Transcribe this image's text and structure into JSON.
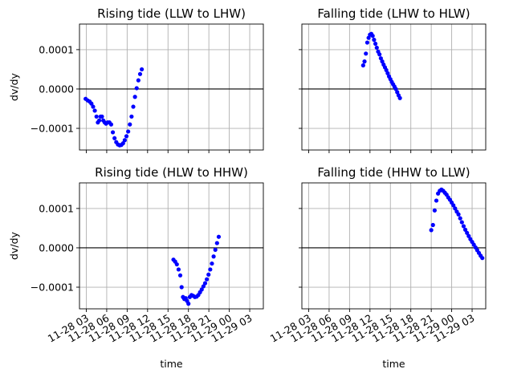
{
  "chart_data": {
    "type": "scatter",
    "shared": {
      "ylabel": "dv/dy",
      "xlabel": "time",
      "ylim": [
        -0.000155,
        0.000165
      ],
      "yticks": [
        {
          "value": 0.0001,
          "label": "0.0001"
        },
        {
          "value": 0.0,
          "label": "0.0000"
        },
        {
          "value": -0.0001,
          "label": "−0.0001"
        }
      ],
      "xlim": [
        -2.2,
        54
      ],
      "xticks": [
        {
          "value": 3,
          "label": "11-28 03"
        },
        {
          "value": 6,
          "label": "11-28 06"
        },
        {
          "value": 9,
          "label": "11-28 09"
        },
        {
          "value": 12,
          "label": "11-28 12"
        },
        {
          "value": 15,
          "label": "11-28 15"
        },
        {
          "value": 18,
          "label": "11-28 18"
        },
        {
          "value": 21,
          "label": "11-28 21"
        },
        {
          "value": 24,
          "label": "11-29 00"
        },
        {
          "value": 27,
          "label": "11-29 03"
        }
      ],
      "grid": true,
      "zero_line": true,
      "marker_color": "#0000ff"
    },
    "panels": [
      {
        "title": "Rising tide (LLW to LHW)",
        "xlim": [
          2.0,
          29.0
        ],
        "points": [
          {
            "x": 2.9,
            "y": -2.5e-05
          },
          {
            "x": 3.2,
            "y": -2.9e-05
          },
          {
            "x": 3.5,
            "y": -3.2e-05
          },
          {
            "x": 3.75,
            "y": -3.7e-05
          },
          {
            "x": 4.0,
            "y": -4.5e-05
          },
          {
            "x": 4.25,
            "y": -5.5e-05
          },
          {
            "x": 4.5,
            "y": -7e-05
          },
          {
            "x": 4.7,
            "y": -8.5e-05
          },
          {
            "x": 4.9,
            "y": -8e-05
          },
          {
            "x": 5.1,
            "y": -7e-05
          },
          {
            "x": 5.3,
            "y": -7e-05
          },
          {
            "x": 5.5,
            "y": -8e-05
          },
          {
            "x": 5.7,
            "y": -8.5e-05
          },
          {
            "x": 5.9,
            "y": -8.8e-05
          },
          {
            "x": 6.15,
            "y": -8.5e-05
          },
          {
            "x": 6.4,
            "y": -8.5e-05
          },
          {
            "x": 6.65,
            "y": -9e-05
          },
          {
            "x": 6.9,
            "y": -0.00011
          },
          {
            "x": 7.15,
            "y": -0.000125
          },
          {
            "x": 7.4,
            "y": -0.000135
          },
          {
            "x": 7.65,
            "y": -0.000141
          },
          {
            "x": 7.9,
            "y": -0.000143
          },
          {
            "x": 8.15,
            "y": -0.000142
          },
          {
            "x": 8.4,
            "y": -0.000138
          },
          {
            "x": 8.65,
            "y": -0.00013
          },
          {
            "x": 8.9,
            "y": -0.00012
          },
          {
            "x": 9.15,
            "y": -0.000108
          },
          {
            "x": 9.4,
            "y": -9e-05
          },
          {
            "x": 9.65,
            "y": -7e-05
          },
          {
            "x": 9.9,
            "y": -4.5e-05
          },
          {
            "x": 10.15,
            "y": -2e-05
          },
          {
            "x": 10.4,
            "y": 2e-06
          },
          {
            "x": 10.65,
            "y": 2.2e-05
          },
          {
            "x": 10.9,
            "y": 3.8e-05
          },
          {
            "x": 11.15,
            "y": 5e-05
          }
        ]
      },
      {
        "title": "Falling tide (LHW to HLW)",
        "xlim": [
          2.0,
          29.0
        ],
        "points": [
          {
            "x": 11.0,
            "y": 6e-05
          },
          {
            "x": 11.2,
            "y": 7e-05
          },
          {
            "x": 11.4,
            "y": 9e-05
          },
          {
            "x": 11.6,
            "y": 0.000118
          },
          {
            "x": 11.8,
            "y": 0.00013
          },
          {
            "x": 12.0,
            "y": 0.000138
          },
          {
            "x": 12.2,
            "y": 0.00014
          },
          {
            "x": 12.4,
            "y": 0.000135
          },
          {
            "x": 12.6,
            "y": 0.000125
          },
          {
            "x": 12.8,
            "y": 0.000115
          },
          {
            "x": 13.0,
            "y": 0.000105
          },
          {
            "x": 13.2,
            "y": 9.5e-05
          },
          {
            "x": 13.4,
            "y": 8.8e-05
          },
          {
            "x": 13.6,
            "y": 7.8e-05
          },
          {
            "x": 13.8,
            "y": 7e-05
          },
          {
            "x": 14.0,
            "y": 6.2e-05
          },
          {
            "x": 14.2,
            "y": 5.5e-05
          },
          {
            "x": 14.4,
            "y": 4.8e-05
          },
          {
            "x": 14.6,
            "y": 4e-05
          },
          {
            "x": 14.8,
            "y": 3.2e-05
          },
          {
            "x": 15.0,
            "y": 2.5e-05
          },
          {
            "x": 15.2,
            "y": 1.8e-05
          },
          {
            "x": 15.4,
            "y": 1.2e-05
          },
          {
            "x": 15.6,
            "y": 6e-06
          },
          {
            "x": 15.8,
            "y": 0.0
          },
          {
            "x": 16.0,
            "y": -8e-06
          },
          {
            "x": 16.2,
            "y": -1.6e-05
          },
          {
            "x": 16.4,
            "y": -2.3e-05
          }
        ]
      },
      {
        "title": "Rising tide (HLW to HHW)",
        "xlim": [
          2.0,
          29.0
        ],
        "points": [
          {
            "x": 15.8,
            "y": -3e-05
          },
          {
            "x": 16.05,
            "y": -3.5e-05
          },
          {
            "x": 16.3,
            "y": -4.2e-05
          },
          {
            "x": 16.55,
            "y": -5.5e-05
          },
          {
            "x": 16.8,
            "y": -7e-05
          },
          {
            "x": 17.0,
            "y": -0.0001
          },
          {
            "x": 17.2,
            "y": -0.000125
          },
          {
            "x": 17.4,
            "y": -0.00013
          },
          {
            "x": 17.6,
            "y": -0.000128
          },
          {
            "x": 17.8,
            "y": -0.000135
          },
          {
            "x": 18.0,
            "y": -0.000142
          },
          {
            "x": 18.2,
            "y": -0.000125
          },
          {
            "x": 18.45,
            "y": -0.00012
          },
          {
            "x": 18.7,
            "y": -0.000122
          },
          {
            "x": 18.95,
            "y": -0.000125
          },
          {
            "x": 19.2,
            "y": -0.000124
          },
          {
            "x": 19.45,
            "y": -0.00012
          },
          {
            "x": 19.7,
            "y": -0.000113
          },
          {
            "x": 19.95,
            "y": -0.000106
          },
          {
            "x": 20.2,
            "y": -9.8e-05
          },
          {
            "x": 20.45,
            "y": -9e-05
          },
          {
            "x": 20.7,
            "y": -8e-05
          },
          {
            "x": 20.95,
            "y": -6.8e-05
          },
          {
            "x": 21.2,
            "y": -5.5e-05
          },
          {
            "x": 21.45,
            "y": -4e-05
          },
          {
            "x": 21.7,
            "y": -2.2e-05
          },
          {
            "x": 21.95,
            "y": -5e-06
          },
          {
            "x": 22.2,
            "y": 1.2e-05
          },
          {
            "x": 22.45,
            "y": 2.8e-05
          }
        ]
      },
      {
        "title": "Falling tide (HHW to LLW)",
        "xlim": [
          2.0,
          29.0
        ],
        "points": [
          {
            "x": 21.0,
            "y": 4.5e-05
          },
          {
            "x": 21.25,
            "y": 5.8e-05
          },
          {
            "x": 21.5,
            "y": 9.5e-05
          },
          {
            "x": 21.75,
            "y": 0.00012
          },
          {
            "x": 22.0,
            "y": 0.000138
          },
          {
            "x": 22.25,
            "y": 0.000145
          },
          {
            "x": 22.5,
            "y": 0.000148
          },
          {
            "x": 22.75,
            "y": 0.000145
          },
          {
            "x": 23.0,
            "y": 0.00014
          },
          {
            "x": 23.25,
            "y": 0.000135
          },
          {
            "x": 23.5,
            "y": 0.000128
          },
          {
            "x": 23.75,
            "y": 0.000122
          },
          {
            "x": 24.0,
            "y": 0.000115
          },
          {
            "x": 24.25,
            "y": 0.000108
          },
          {
            "x": 24.5,
            "y": 0.0001
          },
          {
            "x": 24.75,
            "y": 9.2e-05
          },
          {
            "x": 25.0,
            "y": 8.5e-05
          },
          {
            "x": 25.25,
            "y": 7.5e-05
          },
          {
            "x": 25.5,
            "y": 6.5e-05
          },
          {
            "x": 25.75,
            "y": 5.5e-05
          },
          {
            "x": 26.0,
            "y": 4.6e-05
          },
          {
            "x": 26.25,
            "y": 3.8e-05
          },
          {
            "x": 26.5,
            "y": 3e-05
          },
          {
            "x": 26.75,
            "y": 2.2e-05
          },
          {
            "x": 27.0,
            "y": 1.5e-05
          },
          {
            "x": 27.25,
            "y": 8e-06
          },
          {
            "x": 27.5,
            "y": 1e-06
          },
          {
            "x": 27.75,
            "y": -6e-06
          },
          {
            "x": 28.0,
            "y": -1.3e-05
          },
          {
            "x": 28.25,
            "y": -2e-05
          },
          {
            "x": 28.5,
            "y": -2.6e-05
          }
        ]
      }
    ]
  }
}
